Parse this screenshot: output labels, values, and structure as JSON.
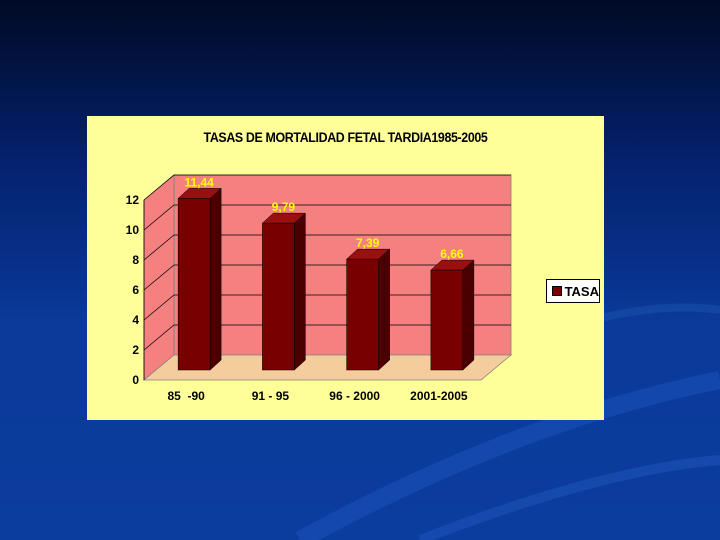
{
  "chart_data": {
    "type": "bar",
    "title": "TASAS DE MORTALIDAD FETAL TARDIA1985-2005",
    "categories": [
      "85  -90",
      "91 - 95",
      "96 - 2000",
      "2001-2005"
    ],
    "series": [
      {
        "name": "TASA",
        "values": [
          11.44,
          9.79,
          7.39,
          6.66
        ],
        "labels": [
          "11,44",
          "9,79",
          "7,39",
          "6,66"
        ]
      }
    ],
    "yticks": [
      "0",
      "2",
      "4",
      "6",
      "8",
      "10",
      "12"
    ],
    "ylim": [
      0,
      12
    ],
    "grid": true,
    "legend_position": "right",
    "colors": {
      "bar_front": "#780000",
      "bar_side": "#4a0000",
      "bar_top": "#9a1010",
      "back_wall": "#f58080",
      "floor": "#f5cc9c",
      "data_label": "#ffff00",
      "panel": "#ffff99"
    }
  }
}
